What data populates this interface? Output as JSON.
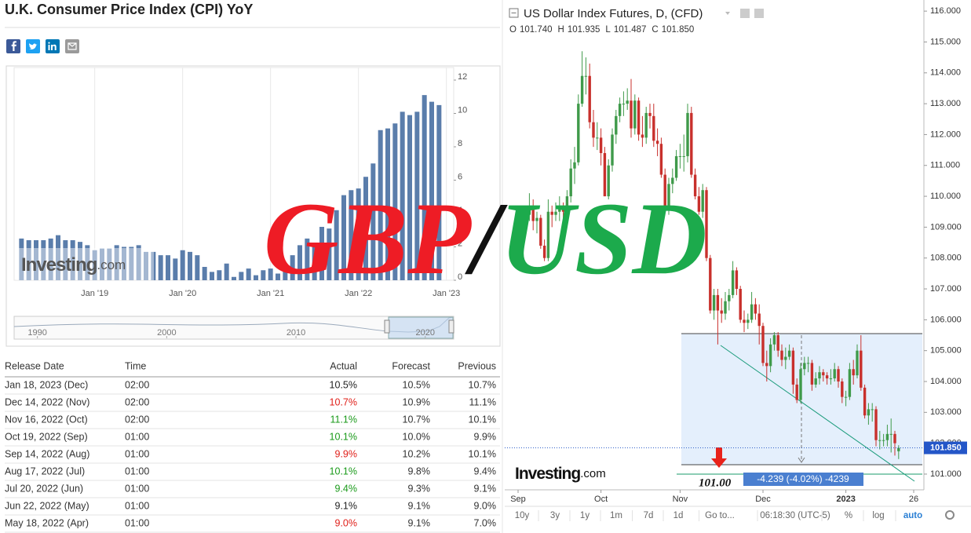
{
  "header": {
    "title": "U.K. Consumer Price Index (CPI) YoY"
  },
  "logo": {
    "name": "Investing",
    "suffix": ".com"
  },
  "chart_data": [
    {
      "type": "bar",
      "color": "#5a7dab",
      "grid": true,
      "x": [
        "2018-03",
        "2018-04",
        "2018-05",
        "2018-06",
        "2018-07",
        "2018-08",
        "2018-09",
        "2018-10",
        "2018-11",
        "2018-12",
        "2019-01",
        "2019-02",
        "2019-03",
        "2019-04",
        "2019-05",
        "2019-06",
        "2019-07",
        "2019-08",
        "2019-09",
        "2019-10",
        "2019-11",
        "2019-12",
        "2020-01",
        "2020-02",
        "2020-03",
        "2020-04",
        "2020-05",
        "2020-06",
        "2020-07",
        "2020-08",
        "2020-09",
        "2020-10",
        "2020-11",
        "2020-12",
        "2021-01",
        "2021-02",
        "2021-03",
        "2021-04",
        "2021-05",
        "2021-06",
        "2021-07",
        "2021-08",
        "2021-09",
        "2021-10",
        "2021-11",
        "2021-12",
        "2022-01",
        "2022-02",
        "2022-03",
        "2022-04",
        "2022-05",
        "2022-06",
        "2022-07",
        "2022-08",
        "2022-09",
        "2022-10",
        "2022-11",
        "2022-12"
      ],
      "values": [
        2.5,
        2.4,
        2.4,
        2.4,
        2.5,
        2.7,
        2.4,
        2.4,
        2.3,
        2.1,
        1.8,
        1.9,
        1.9,
        2.1,
        2.0,
        2.0,
        2.1,
        1.7,
        1.7,
        1.5,
        1.5,
        1.3,
        1.8,
        1.7,
        1.5,
        0.8,
        0.5,
        0.6,
        1.0,
        0.2,
        0.5,
        0.7,
        0.3,
        0.6,
        0.7,
        0.4,
        0.7,
        1.5,
        2.1,
        2.5,
        2.0,
        3.2,
        3.1,
        4.2,
        5.1,
        5.4,
        5.5,
        6.2,
        7.0,
        9.0,
        9.1,
        9.4,
        10.1,
        9.9,
        10.1,
        11.1,
        10.7,
        10.5
      ],
      "xlim": [
        "2018-02",
        "2023-02"
      ],
      "xticks": [
        {
          "value": "2019-01",
          "label": "Jan '19"
        },
        {
          "value": "2020-01",
          "label": "Jan '20"
        },
        {
          "value": "2021-01",
          "label": "Jan '21"
        },
        {
          "value": "2022-01",
          "label": "Jan '22"
        },
        {
          "value": "2023-01",
          "label": "Jan '23"
        }
      ],
      "ylim": [
        0,
        12
      ],
      "yticks": [
        0,
        2,
        4,
        6,
        8,
        10,
        12
      ],
      "navigator": {
        "xlim": [
          1988.2,
          2022.2
        ],
        "xticks": [
          1990,
          2000,
          2010,
          2020
        ]
      }
    },
    {
      "type": "candlestick",
      "title": "US Dollar Index Futures, D, (CFD)",
      "ohlc_legend": [
        {
          "label": "O",
          "value": "101.740"
        },
        {
          "label": "H",
          "value": "101.935"
        },
        {
          "label": "L",
          "value": "101.487"
        },
        {
          "label": "C",
          "value": "101.850"
        }
      ],
      "up_color": "#3f9a4a",
      "down_color": "#c8302c",
      "x": [
        "2022-09-01",
        "2022-09-02",
        "2022-09-05",
        "2022-09-06",
        "2022-09-07",
        "2022-09-08",
        "2022-09-09",
        "2022-09-12",
        "2022-09-13",
        "2022-09-14",
        "2022-09-15",
        "2022-09-16",
        "2022-09-19",
        "2022-09-20",
        "2022-09-21",
        "2022-09-22",
        "2022-09-23",
        "2022-09-26",
        "2022-09-27",
        "2022-09-28",
        "2022-09-29",
        "2022-09-30",
        "2022-10-03",
        "2022-10-04",
        "2022-10-05",
        "2022-10-06",
        "2022-10-07",
        "2022-10-10",
        "2022-10-11",
        "2022-10-12",
        "2022-10-13",
        "2022-10-14",
        "2022-10-17",
        "2022-10-18",
        "2022-10-19",
        "2022-10-20",
        "2022-10-21",
        "2022-10-24",
        "2022-10-25",
        "2022-10-26",
        "2022-10-27",
        "2022-10-28",
        "2022-10-31",
        "2022-11-01",
        "2022-11-02",
        "2022-11-03",
        "2022-11-04",
        "2022-11-07",
        "2022-11-08",
        "2022-11-09",
        "2022-11-10",
        "2022-11-11",
        "2022-11-14",
        "2022-11-15",
        "2022-11-16",
        "2022-11-17",
        "2022-11-18",
        "2022-11-21",
        "2022-11-22",
        "2022-11-23",
        "2022-11-24",
        "2022-11-25",
        "2022-11-28",
        "2022-11-29",
        "2022-11-30",
        "2022-12-01",
        "2022-12-02",
        "2022-12-05",
        "2022-12-06",
        "2022-12-07",
        "2022-12-08",
        "2022-12-09",
        "2022-12-12",
        "2022-12-13",
        "2022-12-14",
        "2022-12-15",
        "2022-12-16",
        "2022-12-19",
        "2022-12-20",
        "2022-12-21",
        "2022-12-22",
        "2022-12-23",
        "2022-12-26",
        "2022-12-27",
        "2022-12-28",
        "2022-12-29",
        "2022-12-30",
        "2023-01-02",
        "2023-01-03",
        "2023-01-04",
        "2023-01-05",
        "2023-01-06",
        "2023-01-09",
        "2023-01-10",
        "2023-01-11",
        "2023-01-12",
        "2023-01-13",
        "2023-01-16",
        "2023-01-17",
        "2023-01-18",
        "2023-01-19",
        "2023-01-20"
      ],
      "ohlc": [
        [
          108.7,
          109.4,
          108.5,
          109.1
        ],
        [
          109.1,
          109.5,
          108.7,
          109.0
        ],
        [
          109.0,
          109.6,
          108.8,
          109.4
        ],
        [
          109.4,
          110.1,
          109.2,
          109.6
        ],
        [
          109.6,
          109.9,
          108.9,
          109.2
        ],
        [
          109.2,
          109.5,
          108.8,
          109.3
        ],
        [
          109.3,
          109.4,
          108.3,
          108.4
        ],
        [
          108.4,
          108.6,
          107.9,
          108.0
        ],
        [
          108.0,
          109.9,
          107.9,
          109.5
        ],
        [
          109.5,
          109.7,
          109.0,
          109.4
        ],
        [
          109.4,
          109.8,
          109.2,
          109.5
        ],
        [
          109.5,
          110.0,
          109.2,
          109.6
        ],
        [
          109.6,
          109.8,
          109.1,
          109.5
        ],
        [
          109.5,
          110.2,
          109.3,
          110.0
        ],
        [
          110.0,
          111.2,
          109.8,
          110.9
        ],
        [
          110.9,
          111.6,
          110.4,
          111.1
        ],
        [
          111.1,
          113.3,
          111.0,
          113.0
        ],
        [
          113.0,
          114.7,
          112.9,
          113.9
        ],
        [
          113.9,
          114.5,
          113.3,
          113.9
        ],
        [
          113.9,
          114.3,
          112.2,
          112.4
        ],
        [
          112.4,
          112.8,
          111.6,
          111.9
        ],
        [
          111.9,
          112.4,
          111.5,
          111.9
        ],
        [
          111.9,
          112.2,
          111.0,
          111.4
        ],
        [
          111.4,
          111.6,
          110.0,
          110.0
        ],
        [
          110.0,
          111.2,
          109.9,
          111.0
        ],
        [
          111.0,
          112.2,
          110.8,
          112.0
        ],
        [
          112.0,
          112.8,
          111.7,
          112.6
        ],
        [
          112.6,
          113.2,
          112.4,
          113.0
        ],
        [
          113.0,
          113.4,
          112.6,
          113.0
        ],
        [
          113.0,
          113.5,
          112.8,
          113.1
        ],
        [
          113.1,
          113.8,
          111.9,
          112.2
        ],
        [
          112.2,
          113.3,
          112.0,
          113.1
        ],
        [
          113.1,
          113.2,
          111.8,
          112.0
        ],
        [
          112.0,
          112.6,
          111.6,
          111.9
        ],
        [
          111.9,
          112.9,
          111.7,
          112.7
        ],
        [
          112.7,
          113.0,
          112.2,
          112.6
        ],
        [
          112.6,
          113.0,
          111.6,
          111.8
        ],
        [
          111.8,
          112.2,
          111.3,
          111.7
        ],
        [
          111.7,
          111.9,
          110.6,
          110.7
        ],
        [
          110.7,
          110.9,
          109.6,
          109.6
        ],
        [
          109.6,
          110.6,
          109.4,
          110.4
        ],
        [
          110.4,
          110.9,
          110.1,
          110.6
        ],
        [
          110.6,
          111.5,
          110.5,
          111.3
        ],
        [
          111.3,
          111.7,
          110.9,
          111.3
        ],
        [
          111.3,
          112.0,
          110.8,
          111.3
        ],
        [
          111.3,
          113.0,
          111.1,
          112.7
        ],
        [
          112.7,
          112.9,
          110.6,
          110.7
        ],
        [
          110.7,
          110.9,
          109.9,
          110.0
        ],
        [
          110.0,
          110.3,
          109.4,
          109.5
        ],
        [
          109.5,
          110.4,
          109.3,
          110.2
        ],
        [
          110.2,
          110.3,
          107.9,
          108.0
        ],
        [
          108.0,
          108.1,
          106.2,
          106.3
        ],
        [
          106.3,
          107.0,
          106.0,
          106.8
        ],
        [
          106.8,
          107.0,
          105.2,
          106.3
        ],
        [
          106.3,
          106.7,
          105.9,
          106.2
        ],
        [
          106.2,
          106.9,
          106.0,
          106.6
        ],
        [
          106.6,
          107.0,
          106.3,
          106.8
        ],
        [
          106.8,
          107.9,
          106.7,
          107.6
        ],
        [
          107.6,
          107.7,
          106.8,
          107.0
        ],
        [
          107.0,
          107.1,
          105.9,
          106.0
        ],
        [
          106.0,
          106.3,
          105.6,
          105.9
        ],
        [
          105.9,
          106.2,
          105.7,
          106.0
        ],
        [
          106.0,
          106.9,
          105.9,
          106.5
        ],
        [
          106.5,
          106.7,
          106.0,
          106.2
        ],
        [
          106.2,
          106.5,
          105.2,
          105.8
        ],
        [
          105.8,
          105.9,
          104.5,
          104.6
        ],
        [
          104.6,
          105.0,
          104.0,
          104.5
        ],
        [
          104.5,
          105.4,
          104.3,
          105.2
        ],
        [
          105.2,
          105.6,
          105.0,
          105.5
        ],
        [
          105.5,
          105.6,
          104.8,
          105.0
        ],
        [
          105.0,
          105.2,
          104.5,
          104.7
        ],
        [
          104.7,
          105.1,
          104.4,
          104.8
        ],
        [
          104.8,
          105.2,
          104.7,
          105.0
        ],
        [
          105.0,
          105.1,
          103.6,
          103.9
        ],
        [
          103.9,
          104.1,
          103.3,
          103.4
        ],
        [
          103.4,
          104.6,
          103.3,
          104.4
        ],
        [
          104.4,
          104.8,
          104.2,
          104.6
        ],
        [
          104.6,
          104.8,
          104.3,
          104.6
        ],
        [
          104.6,
          104.7,
          103.7,
          103.9
        ],
        [
          103.9,
          104.3,
          103.8,
          104.1
        ],
        [
          104.1,
          104.5,
          103.9,
          104.3
        ],
        [
          104.3,
          104.4,
          104.0,
          104.2
        ],
        [
          104.2,
          104.3,
          103.9,
          104.1
        ],
        [
          104.1,
          104.4,
          103.9,
          104.1
        ],
        [
          104.1,
          104.6,
          104.0,
          104.4
        ],
        [
          104.4,
          104.5,
          103.8,
          104.0
        ],
        [
          104.0,
          104.1,
          103.3,
          103.5
        ],
        [
          103.5,
          103.7,
          103.2,
          103.5
        ],
        [
          103.5,
          104.6,
          103.4,
          104.4
        ],
        [
          104.4,
          104.7,
          103.9,
          104.2
        ],
        [
          104.2,
          105.2,
          104.1,
          105.0
        ],
        [
          105.0,
          105.5,
          103.7,
          103.8
        ],
        [
          103.8,
          103.9,
          102.8,
          102.9
        ],
        [
          102.9,
          103.3,
          102.6,
          103.1
        ],
        [
          103.1,
          103.3,
          102.7,
          103.1
        ],
        [
          103.1,
          103.2,
          101.9,
          102.1
        ],
        [
          102.1,
          102.4,
          101.8,
          102.1
        ],
        [
          102.1,
          102.3,
          101.9,
          102.1
        ],
        [
          102.1,
          102.6,
          101.9,
          102.3
        ],
        [
          102.3,
          102.8,
          101.7,
          102.3
        ],
        [
          102.3,
          102.4,
          101.6,
          102.0
        ],
        [
          101.74,
          101.935,
          101.487,
          101.85
        ]
      ],
      "ylim": [
        100.49,
        116.36
      ],
      "yticks": [
        {
          "value": 101,
          "label": "101.000"
        },
        {
          "value": 102,
          "label": "102.000"
        },
        {
          "value": 103,
          "label": "103.000"
        },
        {
          "value": 104,
          "label": "104.000"
        },
        {
          "value": 105,
          "label": "105.000"
        },
        {
          "value": 106,
          "label": "106.000"
        },
        {
          "value": 107,
          "label": "107.000"
        },
        {
          "value": 108,
          "label": "108.000"
        },
        {
          "value": 109,
          "label": "109.000"
        },
        {
          "value": 110,
          "label": "110.000"
        },
        {
          "value": 111,
          "label": "111.000"
        },
        {
          "value": 112,
          "label": "112.000"
        },
        {
          "value": 113,
          "label": "113.000"
        },
        {
          "value": 114,
          "label": "114.000"
        },
        {
          "value": 115,
          "label": "115.000"
        },
        {
          "value": 116,
          "label": "116.000"
        }
      ],
      "xticks": [
        {
          "value": "2022-09-01",
          "label": "Sep"
        },
        {
          "value": "2022-10-03",
          "label": "Oct"
        },
        {
          "value": "2022-11-01",
          "label": "Nov"
        },
        {
          "value": "2022-12-01",
          "label": "Dec"
        },
        {
          "value": "2023-01-02",
          "label": "2023"
        },
        {
          "value": "2023-01-26",
          "label": "26"
        }
      ],
      "last_price": {
        "value": 101.85,
        "label": "101.850"
      },
      "annotations": {
        "target": "101.00",
        "measure": "-4.239 (-4.02%) -4239"
      },
      "toolbar": [
        "10y",
        "3y",
        "1y",
        "1m",
        "7d",
        "1d",
        "Go to...",
        "06:18:30 (UTC-5)",
        "%",
        "log",
        "auto"
      ]
    }
  ],
  "table": {
    "columns": [
      "Release Date",
      "Time",
      "Actual",
      "Forecast",
      "Previous"
    ],
    "rows": [
      [
        "Jan 18, 2023 (Dec)",
        "02:00",
        "10.5%",
        "10.5%",
        "10.7%"
      ],
      [
        "Dec 14, 2022 (Nov)",
        "02:00",
        "10.7%",
        "10.9%",
        "11.1%"
      ],
      [
        "Nov 16, 2022 (Oct)",
        "02:00",
        "11.1%",
        "10.7%",
        "10.1%"
      ],
      [
        "Oct 19, 2022 (Sep)",
        "01:00",
        "10.1%",
        "10.0%",
        "9.9%"
      ],
      [
        "Sep 14, 2022 (Aug)",
        "01:00",
        "9.9%",
        "10.2%",
        "10.1%"
      ],
      [
        "Aug 17, 2022 (Jul)",
        "01:00",
        "10.1%",
        "9.8%",
        "9.4%"
      ],
      [
        "Jul 20, 2022 (Jun)",
        "01:00",
        "9.4%",
        "9.3%",
        "9.1%"
      ],
      [
        "Jun 22, 2022 (May)",
        "01:00",
        "9.1%",
        "9.1%",
        "9.0%"
      ],
      [
        "May 18, 2022 (Apr)",
        "01:00",
        "9.0%",
        "9.1%",
        "7.0%"
      ]
    ],
    "actual_colors": [
      "#222222",
      "#e0201a",
      "#1a9a1a",
      "#1a9a1a",
      "#e0201a",
      "#1a9a1a",
      "#1a9a1a",
      "#222222",
      "#e0201a"
    ]
  },
  "overlay": [
    {
      "text": "GBP",
      "color": "#ee1c25"
    },
    {
      "text": "/",
      "color": "#111111"
    },
    {
      "text": "USD",
      "color": "#1caa4c"
    }
  ]
}
